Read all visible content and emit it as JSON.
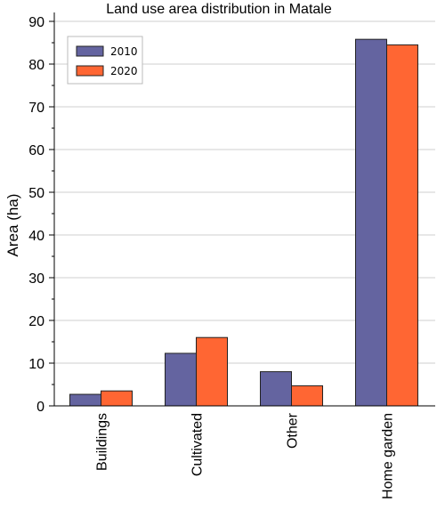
{
  "chart_data": {
    "type": "bar",
    "title": "Land use area distribution in Matale",
    "xlabel": "",
    "ylabel": "Area (ha)",
    "categories": [
      "Buildings",
      "Cultivated",
      "Other",
      "Home garden"
    ],
    "series": [
      {
        "name": "2010",
        "values": [
          2.7,
          12.3,
          8.0,
          85.8
        ],
        "color": "#6464a0"
      },
      {
        "name": "2020",
        "values": [
          3.5,
          16.0,
          4.7,
          84.5
        ],
        "color": "#ff6633"
      }
    ],
    "ylim": [
      0,
      90
    ],
    "yticks": [
      "0",
      "10",
      "20",
      "30",
      "40",
      "50",
      "60",
      "70",
      "80",
      "90"
    ],
    "grid": true,
    "legend_position": "top-left"
  }
}
